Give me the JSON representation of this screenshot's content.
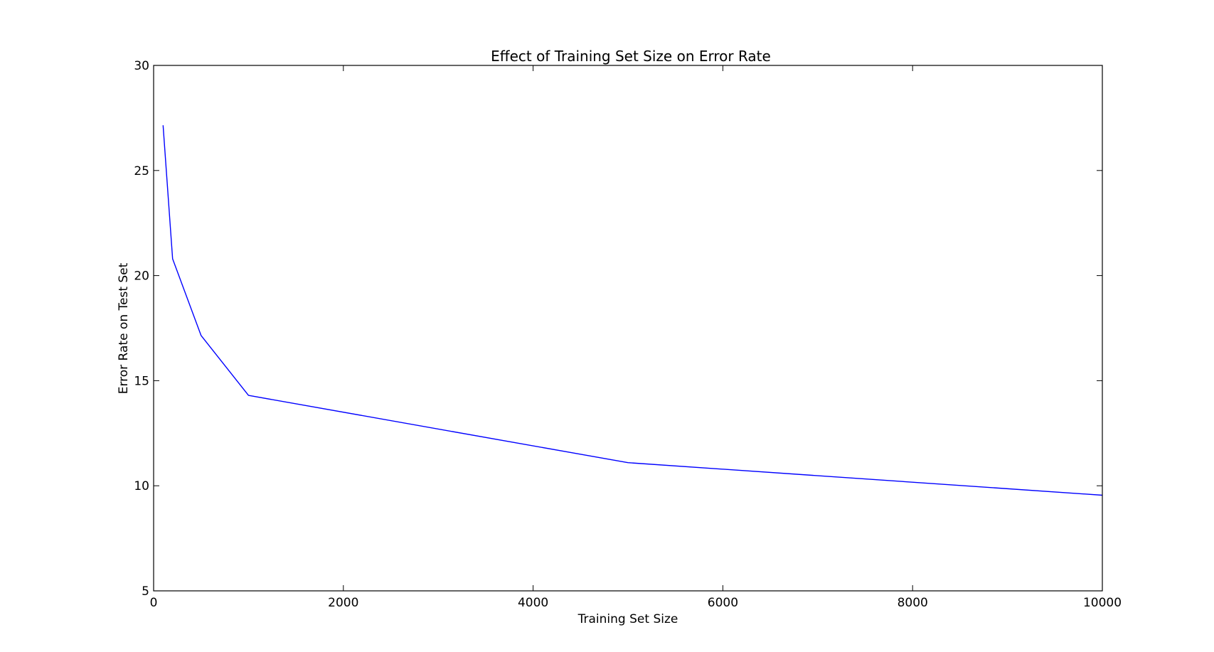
{
  "chart_data": {
    "type": "line",
    "title": "Effect of Training Set Size on Error Rate",
    "xlabel": "Training Set Size",
    "ylabel": "Error Rate on Test Set",
    "xlim": [
      0,
      10000
    ],
    "ylim": [
      5,
      30
    ],
    "xticks": [
      0,
      2000,
      4000,
      6000,
      8000,
      10000
    ],
    "xtick_labels": [
      "0",
      "2000",
      "4000",
      "6000",
      "8000",
      "10000"
    ],
    "yticks": [
      5,
      10,
      15,
      20,
      25,
      30
    ],
    "ytick_labels": [
      "5",
      "10",
      "15",
      "20",
      "25",
      "30"
    ],
    "grid": false,
    "series": [
      {
        "color": "#0000ff",
        "x": [
          100,
          200,
          500,
          1000,
          5000,
          10000
        ],
        "y": [
          27.15,
          20.8,
          17.15,
          14.3,
          11.1,
          9.55
        ]
      }
    ]
  }
}
